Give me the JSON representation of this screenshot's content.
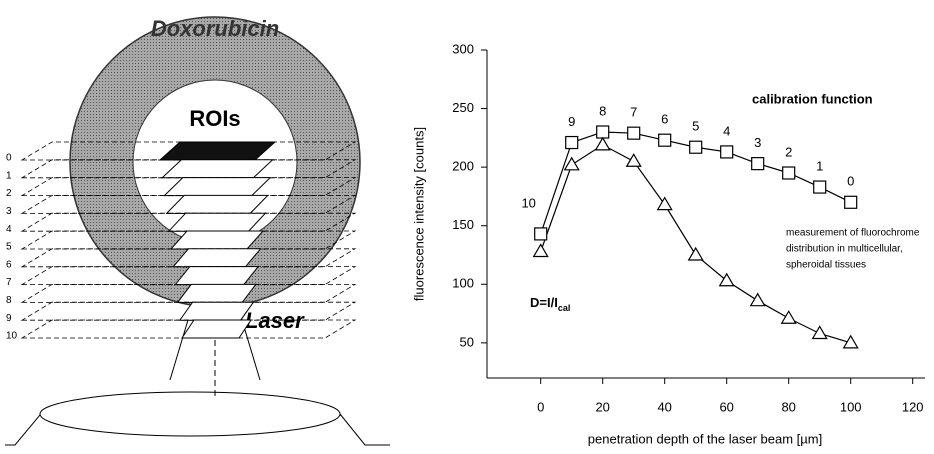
{
  "diagram": {
    "labels": {
      "drug": "Doxorubicin",
      "rois": "ROIs",
      "laser": "Laser"
    },
    "layers": [
      "0",
      "1",
      "2",
      "3",
      "4",
      "5",
      "6",
      "7",
      "8",
      "9",
      "10"
    ]
  },
  "chart_data": {
    "type": "line",
    "x_label": "penetration depth of the laser beam [µm]",
    "y_label": "fluorescence intensity [counts]",
    "x": [
      0,
      10,
      20,
      30,
      40,
      50,
      60,
      70,
      80,
      90,
      100
    ],
    "series": [
      {
        "marker": "square",
        "color": "#000000",
        "values": [
          143,
          221,
          230,
          229,
          223,
          217,
          213,
          203,
          195,
          183,
          170
        ]
      },
      {
        "marker": "triangle",
        "color": "#000000",
        "values": [
          128,
          202,
          219,
          205,
          168,
          125,
          103,
          86,
          71,
          58,
          50
        ]
      }
    ],
    "point_labels": [
      "10",
      "9",
      "8",
      "7",
      "6",
      "5",
      "4",
      "3",
      "2",
      "1",
      "0"
    ],
    "annotations": {
      "calibration": "calibration function",
      "measurement": [
        "measurement of fluorochrome",
        "distribution in multicellular,",
        "spheroidal tissues"
      ],
      "formula": {
        "text": "D=I/I",
        "subscript": "cal"
      }
    },
    "xlim": [
      -17,
      123
    ],
    "xticks": [
      0,
      20,
      40,
      60,
      80,
      100,
      120
    ],
    "ylim": [
      20,
      300
    ],
    "yticks": [
      50,
      100,
      150,
      200,
      250,
      300
    ]
  }
}
